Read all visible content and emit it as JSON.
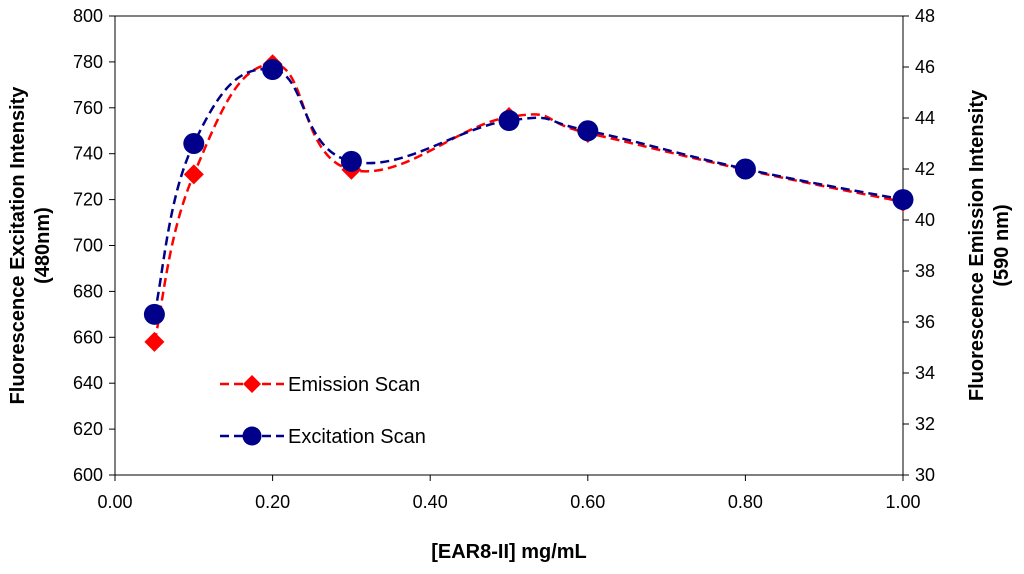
{
  "chart_data": {
    "type": "line",
    "x": [
      0.05,
      0.1,
      0.2,
      0.3,
      0.5,
      0.6,
      0.8,
      1.0
    ],
    "xlabel": "[EAR8-II] mg/mL",
    "xlim": [
      0.0,
      1.0
    ],
    "xticks": [
      "0.00",
      "0.20",
      "0.40",
      "0.60",
      "0.80",
      "1.00"
    ],
    "ylabel_left": [
      "Fluorescence Excitation Intensity",
      "(480nm)"
    ],
    "ylim_left": [
      600,
      800
    ],
    "yticks_left": [
      "600",
      "620",
      "640",
      "660",
      "680",
      "700",
      "720",
      "740",
      "760",
      "780",
      "800"
    ],
    "ylabel_right": [
      "Fluorescence  Emission Intensity",
      "(590 nm)"
    ],
    "ylim_right": [
      30,
      48
    ],
    "yticks_right": [
      "30",
      "32",
      "34",
      "36",
      "38",
      "40",
      "42",
      "44",
      "46",
      "48"
    ],
    "series": [
      {
        "name": "Emission Scan",
        "axis": "left",
        "color": "#ff0000",
        "marker": "diamond",
        "values": [
          658,
          731,
          779,
          733,
          756,
          749,
          733,
          719
        ]
      },
      {
        "name": "Excitation Scan",
        "axis": "right",
        "color": "#00008b",
        "marker": "circle",
        "values": [
          36.3,
          43.0,
          45.9,
          42.3,
          43.9,
          43.5,
          42.0,
          40.8
        ]
      }
    ],
    "legend_position": "bottom-left",
    "grid": false
  }
}
